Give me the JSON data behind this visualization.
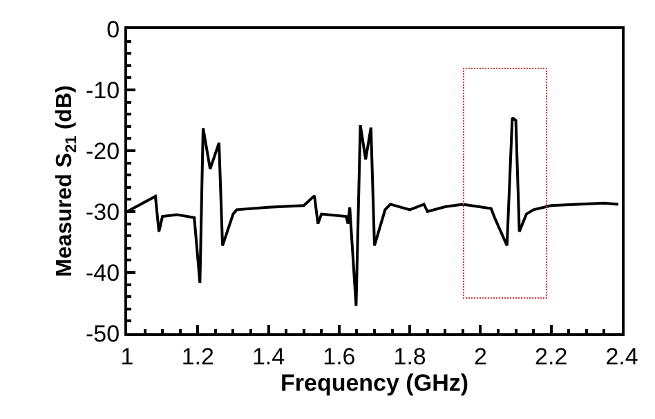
{
  "chart_data": {
    "type": "line",
    "xlabel": "Frequency (GHz)",
    "ylabel": "Measured S$_{21}$ (dB)",
    "x": [
      1.0,
      1.08,
      1.09,
      1.1,
      1.14,
      1.19,
      1.206,
      1.215,
      1.235,
      1.26,
      1.27,
      1.3,
      1.31,
      1.4,
      1.5,
      1.53,
      1.54,
      1.55,
      1.62,
      1.625,
      1.63,
      1.648,
      1.66,
      1.675,
      1.69,
      1.7,
      1.73,
      1.745,
      1.8,
      1.84,
      1.85,
      1.9,
      1.95,
      2.03,
      2.04,
      2.075,
      2.09,
      2.1,
      2.11,
      2.13,
      2.15,
      2.2,
      2.35,
      2.39
    ],
    "series": [
      {
        "color": "#000000",
        "values": [
          -30,
          -27.5,
          -33.3,
          -30.8,
          -30.5,
          -31,
          -41.7,
          -16.3,
          -23,
          -18.7,
          -35.6,
          -30.4,
          -29.7,
          -29.3,
          -29,
          -27.4,
          -32,
          -30.4,
          -30.8,
          -32,
          -29.3,
          -45.5,
          -15.8,
          -21.4,
          -16.2,
          -35.6,
          -29.7,
          -28.8,
          -29.7,
          -28.8,
          -30,
          -29.2,
          -28.8,
          -29.5,
          -31,
          -35.6,
          -14.6,
          -15,
          -33.3,
          -30.4,
          -29.7,
          -29,
          -28.6,
          -28.8
        ]
      }
    ],
    "xlim": [
      1,
      2.4
    ],
    "xticks": [
      1,
      1.2,
      1.4,
      1.6,
      1.8,
      2,
      2.2,
      2.4
    ],
    "ylim": [
      -50,
      0
    ],
    "yticks": [
      0,
      -10,
      -20,
      -30,
      -40,
      -50
    ],
    "grid": false,
    "marker": "none",
    "line_style": "solid"
  }
}
